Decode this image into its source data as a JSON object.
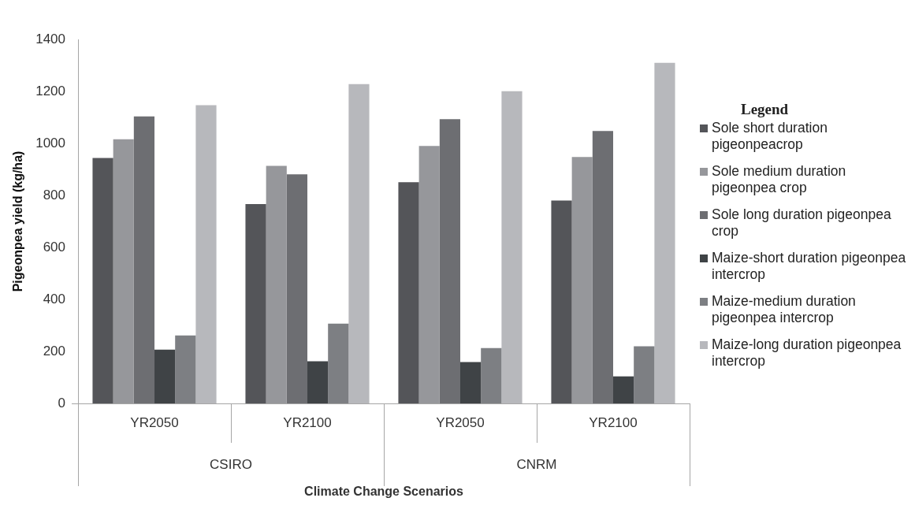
{
  "chart_data": {
    "type": "bar",
    "xlabel": "Climate Change Scenarios",
    "ylabel": "Pigeonpea yield (kg/ha)",
    "legend_title": "Legend",
    "legend": "right",
    "categories": [
      "YR2050",
      "YR2100",
      "YR2050",
      "YR2100"
    ],
    "annotations": [
      "CSIRO",
      "CNRM"
    ],
    "ylim": [
      0,
      1400
    ],
    "yticks": [
      0,
      200,
      400,
      600,
      800,
      1000,
      1200,
      1400
    ],
    "series": [
      {
        "name": "Sole short duration pigeonpeacrop",
        "color": "#545559",
        "values": [
          944,
          767,
          851,
          780
        ]
      },
      {
        "name": "Sole medium duration pigeonpea crop",
        "color": "#96979b",
        "values": [
          1016,
          914,
          990,
          948
        ]
      },
      {
        "name": "Sole long duration pigeonpea crop",
        "color": "#6d6e72",
        "values": [
          1104,
          881,
          1093,
          1048
        ]
      },
      {
        "name": "Maize-short duration pigeonpea intercrop",
        "color": "#3f4346",
        "values": [
          207,
          162,
          159,
          104
        ]
      },
      {
        "name": "Maize-medium duration pigeonpea intercrop",
        "color": "#7d7f83",
        "values": [
          261,
          307,
          213,
          220
        ]
      },
      {
        "name": "Maize-long duration pigeonpea intercrop",
        "color": "#b7b8bc",
        "values": [
          1147,
          1228,
          1201,
          1310
        ]
      }
    ]
  }
}
